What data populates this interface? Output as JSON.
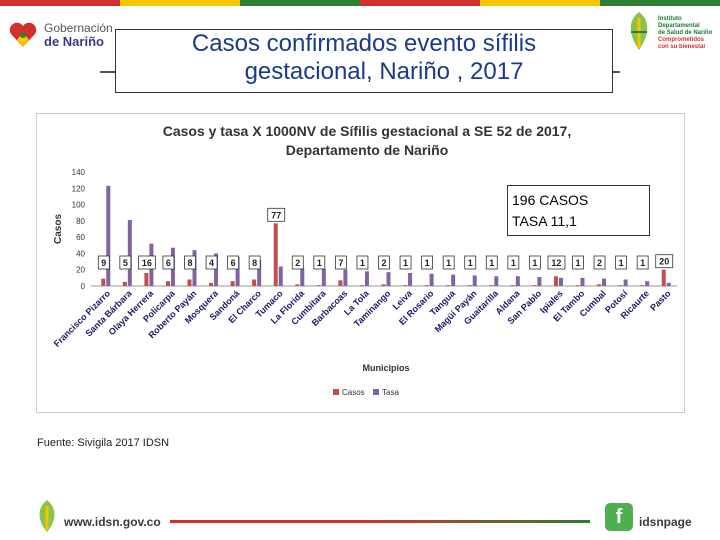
{
  "header": {
    "logo_left_line1": "Gobernación",
    "logo_left_line2": "de Nariño",
    "title_line1": "Casos confirmados evento sífilis",
    "title_line2": "gestacional, Nariño , 2017",
    "logo_right_line1": "Instituto",
    "logo_right_line2": "Departamental",
    "logo_right_line3": "de Salud de Nariño",
    "logo_right_line4": "Comprometidos con su bienestar"
  },
  "annotation": {
    "line1": "196 CASOS",
    "line2": "TASA 11,1"
  },
  "source": "Fuente: Sivigila 2017 IDSN",
  "footer": {
    "url": "www.idsn.gov.co",
    "social": "idsnpage",
    "fb_glyph": "f"
  },
  "colors": {
    "casos": "#c0504d",
    "tasa": "#8064a2",
    "title_blue": "#1a3a8a"
  },
  "chart_data": {
    "type": "bar",
    "title_line1": "Casos y tasa X 1000NV de Sífilis gestacional a SE 52 de 2017,",
    "title_line2": "Departamento de Nariño",
    "xlabel": "Municipios",
    "ylabel": "Casos",
    "ylim": [
      0,
      140
    ],
    "yticks": [
      "0",
      "20",
      "40",
      "60",
      "80",
      "100",
      "120",
      "140"
    ],
    "legend_position": "bottom",
    "categories": [
      "Francisco Pizarro",
      "Santa Bárbara",
      "Olaya Herrera",
      "Policarpa",
      "Roberto Payán",
      "Mosquera",
      "Sandoná",
      "El Charco",
      "Tumaco",
      "La Florida",
      "Cumbitara",
      "Barbacoas",
      "La Tola",
      "Taminango",
      "Leiva",
      "El Rosario",
      "Tangua",
      "Magüí Payán",
      "Guaitarilla",
      "Aldana",
      "San Pablo",
      "Ipiales",
      "El Tambo",
      "Cumbal",
      "Potosí",
      "Ricaurte",
      "Pasto"
    ],
    "series": [
      {
        "name": "Casos",
        "values": [
          9,
          5,
          16,
          6,
          8,
          4,
          6,
          8,
          77,
          2,
          1,
          7,
          1,
          2,
          1,
          1,
          1,
          1,
          1,
          1,
          1,
          12,
          1,
          2,
          1,
          1,
          20
        ]
      },
      {
        "name": "Tasa",
        "values": [
          123,
          81,
          52,
          47,
          44,
          40,
          36,
          32,
          24,
          22,
          21,
          20,
          18,
          17,
          16,
          15,
          14,
          13,
          12,
          12,
          11,
          10,
          10,
          9,
          8,
          6,
          4
        ]
      }
    ],
    "data_labels": [
      "9",
      "5",
      "16",
      "6",
      "8",
      "4",
      "6",
      "8",
      "77",
      "2",
      "1",
      "7",
      "1",
      "2",
      "1",
      "1",
      "1",
      "1",
      "1",
      "1",
      "1",
      "12",
      "1",
      "2",
      "1",
      "1",
      "20"
    ]
  }
}
